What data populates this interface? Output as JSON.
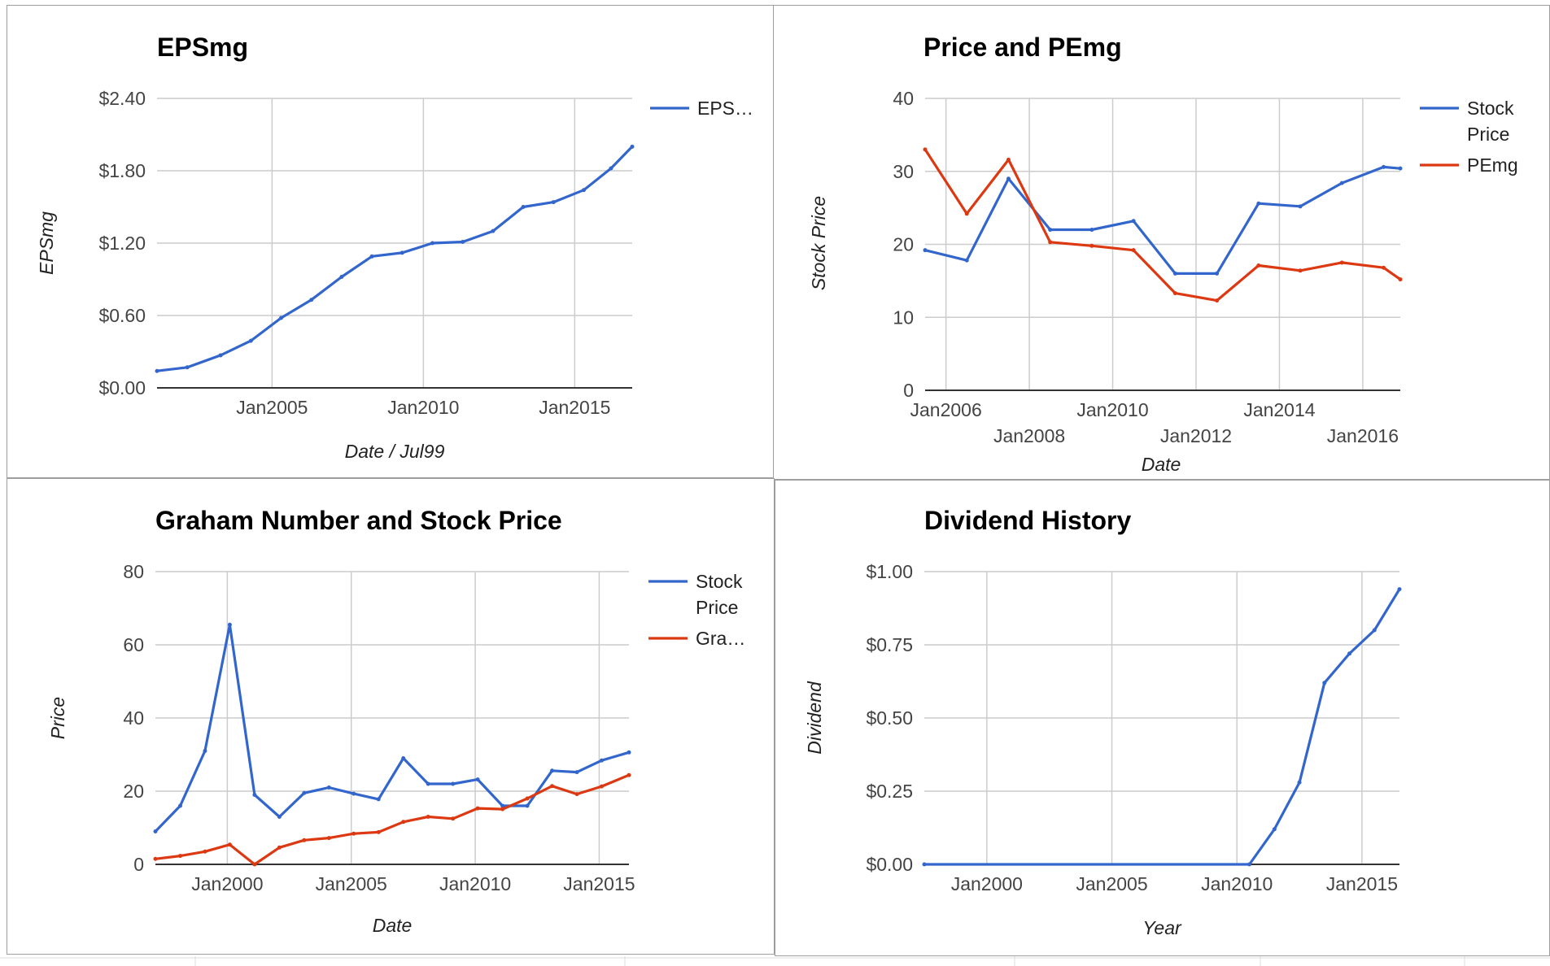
{
  "chart_data": [
    {
      "type": "line",
      "title": "EPSmg",
      "xlabel": "Date / Jul99",
      "ylabel": "EPSmg",
      "xlim": [
        2001.2,
        2016.9
      ],
      "ylim": [
        0,
        2.4
      ],
      "y_ticks": [
        0,
        0.6,
        1.2,
        1.8,
        2.4
      ],
      "y_tick_labels": [
        "$0.00",
        "$0.60",
        "$1.20",
        "$1.80",
        "$2.40"
      ],
      "x_ticks": [
        2005,
        2010,
        2015
      ],
      "x_tick_labels": [
        "Jan2005",
        "Jan2010",
        "Jan2015"
      ],
      "x": [
        2001.2,
        2002.2,
        2003.3,
        2004.3,
        2005.3,
        2006.3,
        2007.3,
        2008.3,
        2009.3,
        2010.3,
        2011.3,
        2012.3,
        2013.3,
        2014.3,
        2015.3,
        2016.2,
        2016.9
      ],
      "series": [
        {
          "name": "EPS…",
          "color": "#3366cc",
          "values": [
            0.14,
            0.17,
            0.27,
            0.39,
            0.58,
            0.73,
            0.92,
            1.09,
            1.12,
            1.2,
            1.21,
            1.3,
            1.5,
            1.54,
            1.64,
            1.82,
            2.0
          ]
        }
      ],
      "grid": true,
      "legend": "right"
    },
    {
      "type": "line",
      "title": "Price and PEmg",
      "xlabel": "Date",
      "ylabel": "Stock Price",
      "xlim": [
        2005.5,
        2016.9
      ],
      "ylim": [
        0,
        40
      ],
      "y_ticks": [
        0,
        10,
        20,
        30,
        40
      ],
      "y_tick_labels": [
        "0",
        "10",
        "20",
        "30",
        "40"
      ],
      "x_ticks": [
        2006,
        2008,
        2010,
        2012,
        2014,
        2016
      ],
      "x_tick_labels": [
        "Jan2006",
        "Jan2008",
        "Jan2010",
        "Jan2012",
        "Jan2014",
        "Jan2016"
      ],
      "x": [
        2005.5,
        2006.5,
        2007.5,
        2008.5,
        2009.5,
        2010.5,
        2011.5,
        2012.5,
        2013.5,
        2014.5,
        2015.5,
        2016.5,
        2016.9
      ],
      "series": [
        {
          "name": "Stock Price",
          "color": "#3366cc",
          "values": [
            19.2,
            17.8,
            29.0,
            22.0,
            22.0,
            23.2,
            16.0,
            16.0,
            25.6,
            25.2,
            28.4,
            30.6,
            30.4
          ]
        },
        {
          "name": "PEmg",
          "color": "#dc3912",
          "values": [
            33.0,
            24.2,
            31.6,
            20.3,
            19.8,
            19.2,
            13.3,
            12.3,
            17.1,
            16.4,
            17.5,
            16.8,
            15.2
          ]
        }
      ],
      "grid": true,
      "legend": "right"
    },
    {
      "type": "line",
      "title": "Graham Number and Stock Price",
      "xlabel": "Date",
      "ylabel": "Price",
      "xlim": [
        1997.1,
        2016.2
      ],
      "ylim": [
        0,
        80
      ],
      "y_ticks": [
        0,
        20,
        40,
        60,
        80
      ],
      "y_tick_labels": [
        "0",
        "20",
        "40",
        "60",
        "80"
      ],
      "x_ticks": [
        2000,
        2005,
        2010,
        2015
      ],
      "x_tick_labels": [
        "Jan2000",
        "Jan2005",
        "Jan2010",
        "Jan2015"
      ],
      "x": [
        1997.1,
        1998.1,
        1999.1,
        2000.1,
        2001.1,
        2002.1,
        2003.1,
        2004.1,
        2005.1,
        2006.1,
        2007.1,
        2008.1,
        2009.1,
        2010.1,
        2011.1,
        2012.1,
        2013.1,
        2014.1,
        2015.1,
        2016.2
      ],
      "series": [
        {
          "name": "Stock Price",
          "color": "#3366cc",
          "values": [
            9.0,
            16.0,
            31.0,
            65.5,
            19.0,
            13.0,
            19.5,
            21.0,
            19.3,
            17.8,
            29.0,
            22.0,
            22.0,
            23.2,
            16.0,
            16.0,
            25.6,
            25.2,
            28.4,
            30.6
          ]
        },
        {
          "name": "Gra…",
          "color": "#dc3912",
          "values": [
            1.5,
            2.3,
            3.5,
            5.4,
            0.0,
            4.6,
            6.6,
            7.2,
            8.4,
            8.8,
            11.6,
            13.0,
            12.5,
            15.3,
            15.1,
            18.0,
            21.4,
            19.2,
            21.3,
            24.4
          ]
        }
      ],
      "grid": true,
      "legend": "right"
    },
    {
      "type": "line",
      "title": "Dividend History",
      "xlabel": "Year",
      "ylabel": "Dividend",
      "xlim": [
        1997.5,
        2016.5
      ],
      "ylim": [
        0,
        1
      ],
      "y_ticks": [
        0,
        0.25,
        0.5,
        0.75,
        1
      ],
      "y_tick_labels": [
        "$0.00",
        "$0.25",
        "$0.50",
        "$0.75",
        "$1.00"
      ],
      "x_ticks": [
        2000,
        2005,
        2010,
        2015
      ],
      "x_tick_labels": [
        "Jan2000",
        "Jan2005",
        "Jan2010",
        "Jan2015"
      ],
      "x": [
        1997.5,
        2010.5,
        2011.5,
        2012.5,
        2013.5,
        2014.5,
        2015.5,
        2016.5
      ],
      "series": [
        {
          "name": "Dividend",
          "color": "#3366cc",
          "values": [
            0,
            0,
            0.12,
            0.28,
            0.62,
            0.72,
            0.8,
            0.94
          ]
        }
      ],
      "grid": true,
      "legend": "none"
    }
  ]
}
